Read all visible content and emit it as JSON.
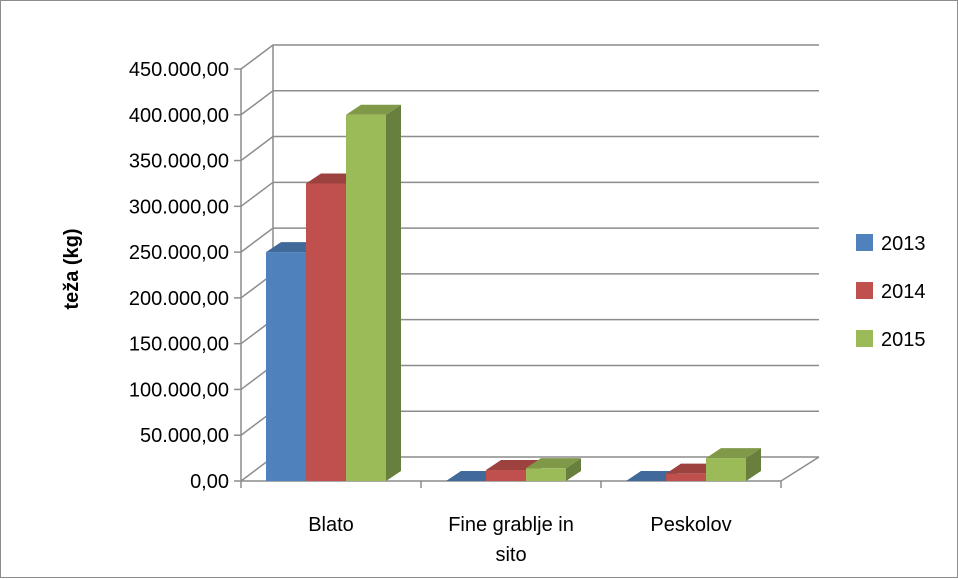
{
  "chart_data": {
    "type": "bar",
    "style": "3d-clustered-column",
    "categories": [
      "Blato",
      "Fine grablje in sito",
      "Peskolov"
    ],
    "series": [
      {
        "name": "2013",
        "color": "#4F81BD",
        "values": [
          250000,
          0,
          0
        ]
      },
      {
        "name": "2014",
        "color": "#C0504D",
        "values": [
          325000,
          12000,
          8000
        ]
      },
      {
        "name": "2015",
        "color": "#9BBB59",
        "values": [
          400000,
          14000,
          25000
        ]
      }
    ],
    "ylabel": "teža (kg)",
    "xlabel": "",
    "ylim": [
      0,
      450000
    ],
    "ytick_labels": [
      "0,00",
      "50.000,00",
      "100.000,00",
      "150.000,00",
      "200.000,00",
      "250.000,00",
      "300.000,00",
      "350.000,00",
      "400.000,00",
      "450.000,00"
    ],
    "grid": true,
    "legend_position": "right"
  }
}
